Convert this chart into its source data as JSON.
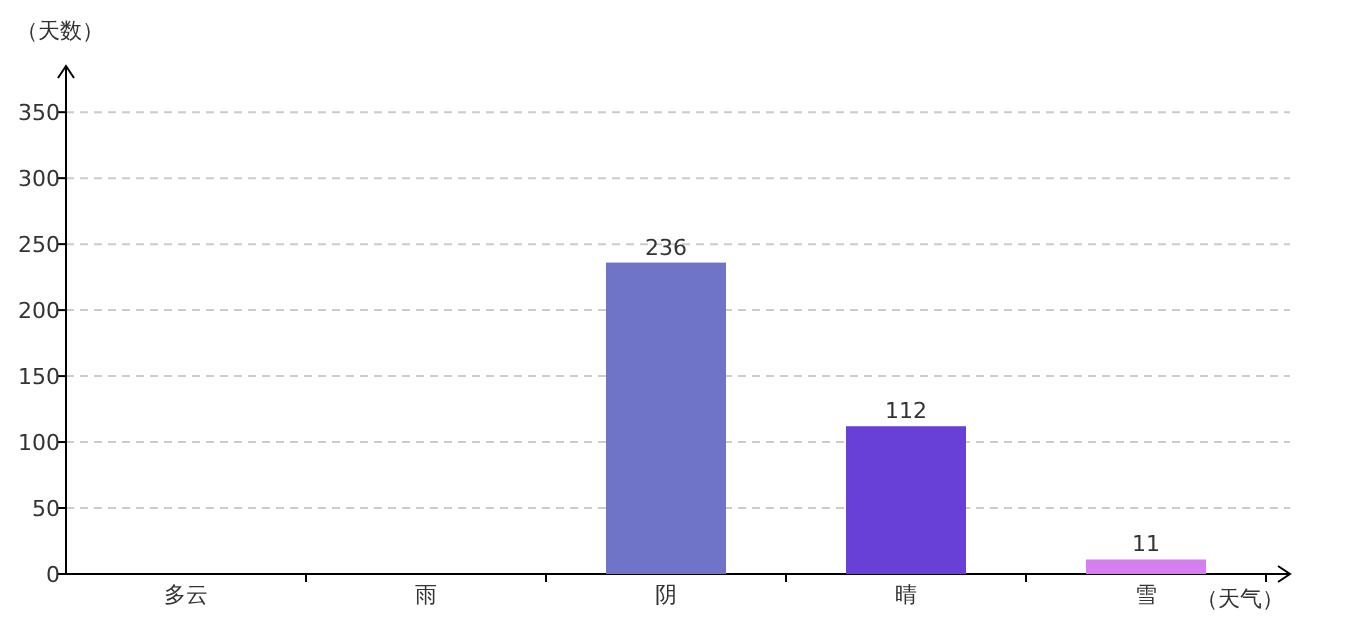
{
  "chart_data": {
    "type": "bar",
    "xlabel": "（天气）",
    "ylabel": "（天数）",
    "categories": [
      "多云",
      "雨",
      "阴",
      "晴",
      "雪"
    ],
    "values": [
      null,
      null,
      236,
      112,
      11
    ],
    "colors": [
      null,
      null,
      "#6f74c8",
      "#6840d8",
      "#d57ef0"
    ],
    "ylim": [
      0,
      385
    ],
    "yticks": [
      0,
      50,
      100,
      150,
      200,
      250,
      300,
      350
    ],
    "grid": "y",
    "data_labels": true
  }
}
